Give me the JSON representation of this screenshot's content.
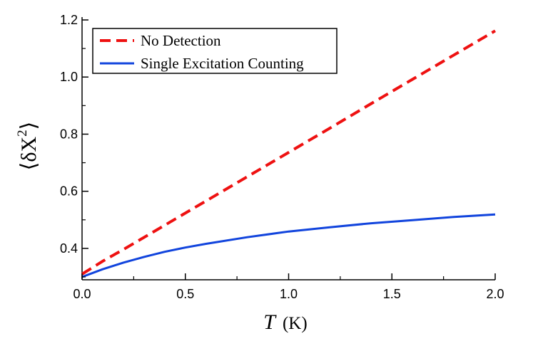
{
  "chart_data": {
    "type": "line",
    "xlabel": {
      "symbol": "T",
      "unit": "(K)"
    },
    "ylabel": {
      "symbol": "δX",
      "superscript": "2"
    },
    "xlim": [
      0.0,
      2.0
    ],
    "ylim": [
      0.29,
      1.21
    ],
    "x_ticks": [
      0.0,
      0.5,
      1.0,
      1.5,
      2.0
    ],
    "x_tick_labels": [
      "0.0",
      "0.5",
      "1.0",
      "1.5",
      "2.0"
    ],
    "y_ticks": [
      0.4,
      0.6,
      0.8,
      1.0,
      1.2
    ],
    "y_tick_labels": [
      "0.4",
      "0.6",
      "0.8",
      "1.0",
      "1.2"
    ],
    "grid": false,
    "legend_position": "top-left",
    "series": [
      {
        "name": "No Detection",
        "color": "#ee1111",
        "style": "dashed",
        "x": [
          0.0,
          0.1,
          0.2,
          0.4,
          0.6,
          0.8,
          1.0,
          1.2,
          1.4,
          1.6,
          1.8,
          2.0
        ],
        "y": [
          0.31,
          0.355,
          0.396,
          0.481,
          0.566,
          0.651,
          0.736,
          0.821,
          0.907,
          0.992,
          1.077,
          1.162
        ]
      },
      {
        "name": "Single Excitation Counting",
        "color": "#1144dd",
        "style": "solid",
        "x": [
          0.0,
          0.1,
          0.2,
          0.3,
          0.4,
          0.5,
          0.6,
          0.8,
          1.0,
          1.2,
          1.4,
          1.6,
          1.8,
          2.0
        ],
        "y": [
          0.3,
          0.327,
          0.35,
          0.37,
          0.388,
          0.403,
          0.416,
          0.439,
          0.459,
          0.474,
          0.488,
          0.499,
          0.51,
          0.519
        ]
      }
    ]
  }
}
